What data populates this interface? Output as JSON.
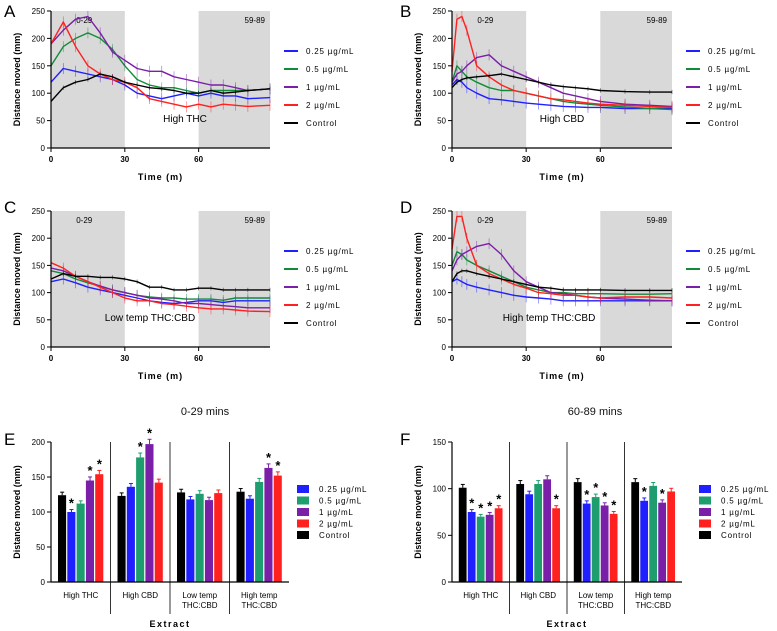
{
  "colors": {
    "c025": "#1f1fff",
    "c05": "#128a3a",
    "c1": "#7a1fa8",
    "c2": "#ff2020",
    "control": "#000000",
    "bar05": "#1e9e6e",
    "shade": "#d9d9d9"
  },
  "section_titles": {
    "left": "0-29 mins",
    "right": "60-89 mins"
  },
  "chart_data": [
    {
      "panel": "A",
      "type": "line",
      "title": "High THC",
      "xlabel": "Time (m)",
      "ylabel": "Distance moved (mm)",
      "xlim": [
        0,
        89
      ],
      "ylim": [
        0,
        250
      ],
      "xticks": [
        0,
        30,
        60
      ],
      "yticks": [
        0,
        50,
        100,
        150,
        200,
        250
      ],
      "shaded_regions": [
        {
          "range": [
            0,
            30
          ],
          "label": "0-29"
        },
        {
          "range": [
            60,
            89
          ],
          "label": "59-89"
        }
      ],
      "x": [
        0,
        5,
        10,
        15,
        20,
        25,
        30,
        35,
        40,
        45,
        50,
        55,
        60,
        65,
        70,
        75,
        80,
        89
      ],
      "series": [
        {
          "name": "0.25 µg/mL",
          "values": [
            120,
            145,
            140,
            135,
            130,
            125,
            115,
            100,
            95,
            90,
            95,
            100,
            95,
            100,
            95,
            95,
            90,
            92
          ]
        },
        {
          "name": "0.5 µg/mL",
          "values": [
            150,
            185,
            200,
            210,
            200,
            180,
            150,
            125,
            115,
            110,
            110,
            105,
            100,
            105,
            105,
            105,
            105,
            108
          ]
        },
        {
          "name": "1 µg/mL",
          "values": [
            190,
            215,
            235,
            240,
            210,
            175,
            160,
            145,
            140,
            140,
            130,
            125,
            120,
            115,
            115,
            110,
            105,
            108
          ]
        },
        {
          "name": "2 µg/mL",
          "values": [
            190,
            230,
            185,
            150,
            135,
            125,
            120,
            110,
            90,
            85,
            80,
            75,
            80,
            75,
            80,
            78,
            76,
            78
          ]
        },
        {
          "name": "Control",
          "values": [
            85,
            110,
            120,
            125,
            135,
            130,
            120,
            115,
            110,
            108,
            105,
            100,
            100,
            105,
            100,
            102,
            105,
            108
          ]
        }
      ]
    },
    {
      "panel": "B",
      "type": "line",
      "title": "High CBD",
      "xlabel": "Time (m)",
      "ylabel": "Distance moved (mm)",
      "xlim": [
        0,
        89
      ],
      "ylim": [
        0,
        250
      ],
      "xticks": [
        0,
        30,
        60
      ],
      "yticks": [
        0,
        50,
        100,
        150,
        200,
        250
      ],
      "shaded_regions": [
        {
          "range": [
            0,
            30
          ],
          "label": "0-29"
        },
        {
          "range": [
            60,
            89
          ],
          "label": "59-89"
        }
      ],
      "x": [
        0,
        2,
        4,
        6,
        10,
        15,
        20,
        25,
        30,
        35,
        40,
        45,
        50,
        55,
        60,
        70,
        80,
        89
      ],
      "series": [
        {
          "name": "0.25 µg/mL",
          "values": [
            115,
            125,
            120,
            110,
            100,
            90,
            88,
            85,
            82,
            80,
            78,
            76,
            75,
            74,
            74,
            72,
            72,
            72
          ]
        },
        {
          "name": "0.5 µg/mL",
          "values": [
            120,
            150,
            140,
            130,
            120,
            110,
            105,
            105,
            100,
            95,
            90,
            85,
            82,
            80,
            78,
            75,
            72,
            70
          ]
        },
        {
          "name": "1 µg/mL",
          "values": [
            120,
            135,
            140,
            150,
            165,
            170,
            150,
            140,
            130,
            120,
            110,
            100,
            95,
            90,
            85,
            80,
            78,
            76
          ]
        },
        {
          "name": "2 µg/mL",
          "values": [
            140,
            235,
            240,
            215,
            150,
            130,
            115,
            105,
            100,
            95,
            90,
            88,
            85,
            82,
            80,
            78,
            76,
            74
          ]
        },
        {
          "name": "Control",
          "values": [
            110,
            120,
            125,
            128,
            130,
            132,
            135,
            130,
            125,
            120,
            115,
            112,
            110,
            108,
            105,
            103,
            102,
            102
          ]
        }
      ]
    },
    {
      "panel": "C",
      "type": "line",
      "title": "Low temp THC:CBD",
      "xlabel": "Time (m)",
      "ylabel": "Distance moved (mm)",
      "xlim": [
        0,
        89
      ],
      "ylim": [
        0,
        250
      ],
      "xticks": [
        0,
        30,
        60
      ],
      "yticks": [
        0,
        50,
        100,
        150,
        200,
        250
      ],
      "shaded_regions": [
        {
          "range": [
            0,
            30
          ],
          "label": "0-29"
        },
        {
          "range": [
            60,
            89
          ],
          "label": "59-89"
        }
      ],
      "x": [
        0,
        5,
        10,
        15,
        20,
        25,
        30,
        35,
        40,
        45,
        50,
        55,
        60,
        65,
        70,
        75,
        80,
        89
      ],
      "series": [
        {
          "name": "0.25 µg/mL",
          "values": [
            120,
            125,
            118,
            110,
            105,
            100,
            95,
            90,
            85,
            82,
            80,
            82,
            85,
            85,
            82,
            85,
            85,
            85
          ]
        },
        {
          "name": "0.5 µg/mL",
          "values": [
            140,
            135,
            125,
            118,
            112,
            105,
            100,
            95,
            92,
            90,
            90,
            88,
            88,
            88,
            86,
            90,
            90,
            90
          ]
        },
        {
          "name": "1 µg/mL",
          "values": [
            145,
            140,
            130,
            120,
            112,
            105,
            100,
            95,
            90,
            88,
            85,
            80,
            80,
            78,
            76,
            74,
            72,
            72
          ]
        },
        {
          "name": "2 µg/mL",
          "values": [
            155,
            145,
            130,
            120,
            110,
            100,
            90,
            85,
            85,
            80,
            78,
            75,
            72,
            70,
            70,
            68,
            66,
            65
          ]
        },
        {
          "name": "Control",
          "values": [
            125,
            135,
            130,
            130,
            128,
            128,
            125,
            120,
            110,
            110,
            105,
            105,
            108,
            108,
            105,
            105,
            105,
            105
          ]
        }
      ]
    },
    {
      "panel": "D",
      "type": "line",
      "title": "High temp THC:CBD",
      "xlabel": "Time (m)",
      "ylabel": "Distance moved (mm)",
      "xlim": [
        0,
        89
      ],
      "ylim": [
        0,
        250
      ],
      "xticks": [
        0,
        30,
        60
      ],
      "yticks": [
        0,
        50,
        100,
        150,
        200,
        250
      ],
      "shaded_regions": [
        {
          "range": [
            0,
            30
          ],
          "label": "0-29"
        },
        {
          "range": [
            60,
            89
          ],
          "label": "59-89"
        }
      ],
      "x": [
        0,
        2,
        4,
        6,
        10,
        15,
        20,
        25,
        30,
        35,
        40,
        45,
        50,
        55,
        60,
        70,
        80,
        89
      ],
      "series": [
        {
          "name": "0.25 µg/mL",
          "values": [
            120,
            125,
            120,
            115,
            110,
            105,
            100,
            95,
            92,
            90,
            88,
            85,
            85,
            85,
            85,
            85,
            85,
            85
          ]
        },
        {
          "name": "0.5 µg/mL",
          "values": [
            150,
            175,
            170,
            160,
            150,
            140,
            130,
            120,
            110,
            105,
            100,
            100,
            98,
            98,
            98,
            97,
            97,
            98
          ]
        },
        {
          "name": "1 µg/mL",
          "values": [
            140,
            160,
            170,
            175,
            185,
            190,
            170,
            140,
            120,
            110,
            100,
            98,
            95,
            92,
            90,
            88,
            86,
            85
          ]
        },
        {
          "name": "2 µg/mL",
          "values": [
            180,
            240,
            240,
            200,
            150,
            135,
            125,
            115,
            108,
            100,
            98,
            95,
            95,
            92,
            90,
            92,
            92,
            90
          ]
        },
        {
          "name": "Control",
          "values": [
            120,
            135,
            140,
            140,
            135,
            130,
            125,
            120,
            115,
            110,
            108,
            105,
            105,
            105,
            105,
            104,
            104,
            104
          ]
        }
      ]
    },
    {
      "panel": "E",
      "type": "bar",
      "window": "0-29 mins",
      "xlabel": "Extract",
      "ylabel": "Distance moved (mm)",
      "ylim": [
        0,
        200
      ],
      "yticks": [
        0,
        50,
        100,
        150,
        200
      ],
      "categories": [
        "High THC",
        "High CBD",
        "Low temp THC:CBD",
        "High temp THC:CBD"
      ],
      "series": [
        {
          "name": "Control",
          "values": [
            124,
            123,
            128,
            129
          ],
          "sig": [
            false,
            false,
            false,
            false
          ]
        },
        {
          "name": "0.25 µg/mL",
          "values": [
            100,
            136,
            118,
            119
          ],
          "sig": [
            true,
            false,
            false,
            false
          ]
        },
        {
          "name": "0.5 µg/mL",
          "values": [
            112,
            178,
            126,
            143
          ],
          "sig": [
            false,
            true,
            false,
            false
          ]
        },
        {
          "name": "1 µg/mL",
          "values": [
            145,
            197,
            117,
            163
          ],
          "sig": [
            true,
            true,
            false,
            true
          ]
        },
        {
          "name": "2 µg/mL",
          "values": [
            154,
            142,
            127,
            152
          ],
          "sig": [
            true,
            false,
            false,
            true
          ]
        }
      ]
    },
    {
      "panel": "F",
      "type": "bar",
      "window": "60-89 mins",
      "xlabel": "Extract",
      "ylabel": "Distance moved (mm)",
      "ylim": [
        0,
        150
      ],
      "yticks": [
        0,
        50,
        100,
        150
      ],
      "categories": [
        "High THC",
        "High CBD",
        "Low temp THC:CBD",
        "High temp THC:CBD"
      ],
      "series": [
        {
          "name": "Control",
          "values": [
            101,
            105,
            107,
            107
          ],
          "sig": [
            false,
            false,
            false,
            false
          ]
        },
        {
          "name": "0.25 µg/mL",
          "values": [
            75,
            94,
            84,
            87
          ],
          "sig": [
            true,
            false,
            true,
            true
          ]
        },
        {
          "name": "0.5 µg/mL",
          "values": [
            70,
            105,
            91,
            103
          ],
          "sig": [
            true,
            false,
            true,
            false
          ]
        },
        {
          "name": "1 µg/mL",
          "values": [
            72,
            110,
            82,
            85
          ],
          "sig": [
            true,
            false,
            true,
            true
          ]
        },
        {
          "name": "2 µg/mL",
          "values": [
            79,
            79,
            73,
            97
          ],
          "sig": [
            true,
            true,
            true,
            false
          ]
        }
      ]
    }
  ]
}
